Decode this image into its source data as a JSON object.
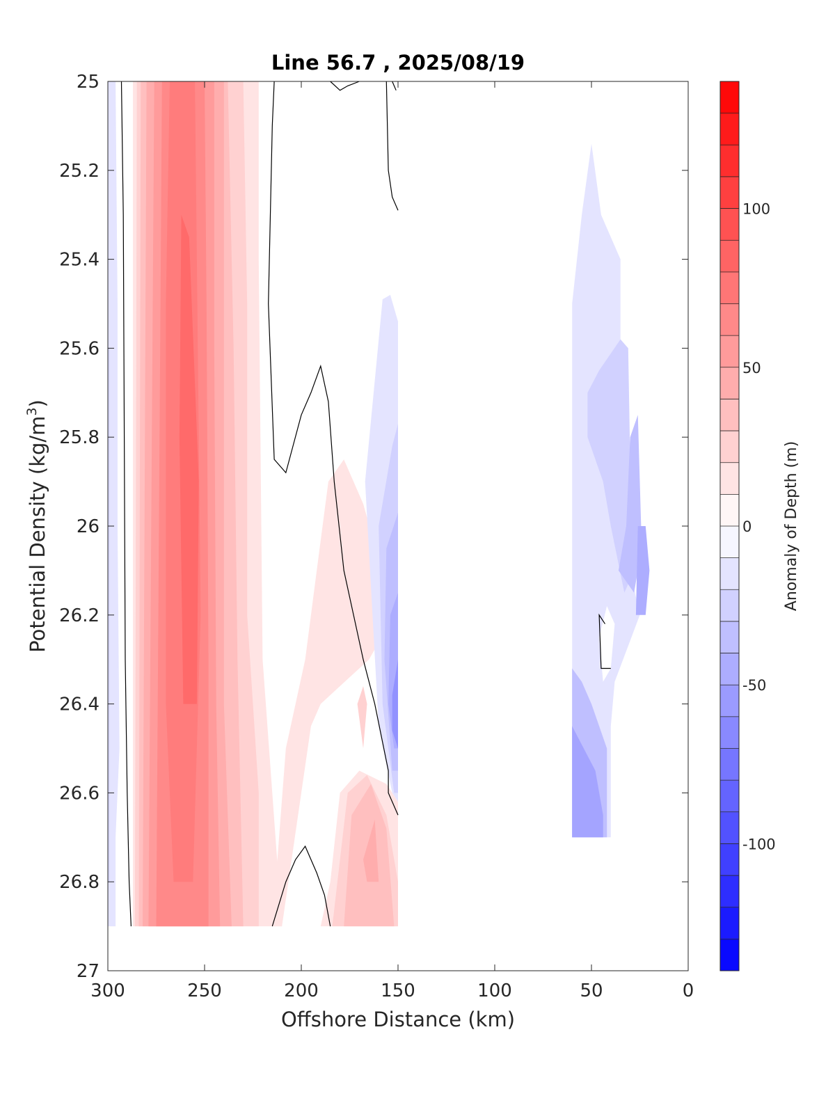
{
  "chart_data": {
    "type": "contourf",
    "title": "Line 56.7 , 2025/08/19",
    "xlabel": "Offshore Distance (km)",
    "ylabel_main": "Potential Density (kg/m",
    "ylabel_sup": "3",
    "ylabel_close": ")",
    "xlim": [
      300,
      0
    ],
    "ylim": [
      25,
      27
    ],
    "x_ticks": [
      300,
      250,
      200,
      150,
      100,
      50,
      0
    ],
    "y_ticks": [
      "25",
      "25.2",
      "25.4",
      "25.6",
      "25.8",
      "26",
      "26.2",
      "26.4",
      "26.6",
      "26.8",
      "27"
    ],
    "y_tick_values": [
      25,
      25.2,
      25.4,
      25.6,
      25.8,
      26,
      26.2,
      26.4,
      26.6,
      26.8,
      27
    ],
    "colorbar": {
      "label": "Anomaly of Depth (m)",
      "range": [
        -140,
        140
      ],
      "step": 10,
      "ticks": [
        100,
        50,
        0,
        -50,
        -100
      ],
      "tick_labels": [
        "100",
        "50",
        "0",
        "-50",
        "-100"
      ],
      "positive_color": "#ff0000",
      "negative_color": "#0000ff"
    },
    "regions": [
      {
        "value": 5,
        "points": [
          [
            296,
            25
          ],
          [
            300,
            25
          ],
          [
            300,
            26.9
          ],
          [
            296,
            26.9
          ]
        ]
      },
      {
        "value": -15,
        "points": [
          [
            298,
            25
          ],
          [
            300,
            25
          ],
          [
            300,
            26.9
          ],
          [
            296,
            26.9
          ],
          [
            296,
            26.7
          ],
          [
            294,
            26.5
          ],
          [
            295,
            26.0
          ],
          [
            295,
            25.5
          ],
          [
            296,
            25.0
          ]
        ]
      },
      {
        "value": -20,
        "points": [
          [
            299,
            25.6
          ],
          [
            300,
            25.6
          ],
          [
            300,
            26.8
          ],
          [
            299,
            26.8
          ]
        ]
      },
      {
        "value": 15,
        "points": [
          [
            287,
            25
          ],
          [
            222,
            25
          ],
          [
            222,
            25.4
          ],
          [
            220,
            26.3
          ],
          [
            215,
            26.6
          ],
          [
            210,
            26.9
          ],
          [
            287,
            26.9
          ]
        ]
      },
      {
        "value": 25,
        "points": [
          [
            285,
            25
          ],
          [
            230,
            25
          ],
          [
            228,
            25.5
          ],
          [
            228,
            26.2
          ],
          [
            222,
            26.6
          ],
          [
            222,
            26.9
          ],
          [
            286,
            26.9
          ]
        ]
      },
      {
        "value": 35,
        "points": [
          [
            283,
            25
          ],
          [
            238,
            25
          ],
          [
            235,
            25.6
          ],
          [
            233,
            26.3
          ],
          [
            230,
            26.9
          ],
          [
            284,
            26.9
          ]
        ]
      },
      {
        "value": 45,
        "points": [
          [
            280,
            25
          ],
          [
            240,
            25
          ],
          [
            240,
            25.7
          ],
          [
            240,
            26.4
          ],
          [
            236,
            26.9
          ],
          [
            282,
            26.9
          ]
        ]
      },
      {
        "value": 55,
        "points": [
          [
            276,
            25
          ],
          [
            245,
            25
          ],
          [
            245,
            25.6
          ],
          [
            244,
            26.4
          ],
          [
            242,
            26.9
          ],
          [
            279,
            26.9
          ]
        ]
      },
      {
        "value": 65,
        "points": [
          [
            272,
            25
          ],
          [
            250,
            25
          ],
          [
            249,
            25.5
          ],
          [
            248,
            26.3
          ],
          [
            248,
            26.9
          ],
          [
            275,
            26.9
          ]
        ]
      },
      {
        "value": 72,
        "points": [
          [
            268,
            25
          ],
          [
            255,
            25
          ],
          [
            254,
            25.4
          ],
          [
            252,
            26.2
          ],
          [
            256,
            26.8
          ],
          [
            266,
            26.8
          ],
          [
            270,
            26.4
          ],
          [
            270,
            25.5
          ]
        ]
      },
      {
        "value": 82,
        "points": [
          [
            262,
            25.3
          ],
          [
            258,
            25.35
          ],
          [
            253,
            25.9
          ],
          [
            254,
            26.4
          ],
          [
            261,
            26.4
          ],
          [
            263,
            25.8
          ]
        ]
      },
      {
        "value": 15,
        "points": [
          [
            210,
            26.9
          ],
          [
            205,
            26.75
          ],
          [
            200,
            26.6
          ],
          [
            195,
            26.45
          ],
          [
            190,
            26.4
          ],
          [
            165,
            26.3
          ],
          [
            152,
            26.2
          ],
          [
            168,
            25.95
          ],
          [
            178,
            25.85
          ],
          [
            186,
            25.9
          ],
          [
            192,
            26.1
          ],
          [
            198,
            26.3
          ],
          [
            208,
            26.5
          ],
          [
            215,
            26.9
          ]
        ]
      },
      {
        "value": 15,
        "points": [
          [
            190,
            26.9
          ],
          [
            185,
            26.8
          ],
          [
            180,
            26.6
          ],
          [
            170,
            26.55
          ],
          [
            156,
            26.58
          ],
          [
            150,
            26.62
          ],
          [
            150,
            26.9
          ]
        ]
      },
      {
        "value": 25,
        "points": [
          [
            184,
            26.9
          ],
          [
            176,
            26.6
          ],
          [
            166,
            26.56
          ],
          [
            156,
            26.65
          ],
          [
            150,
            26.8
          ],
          [
            150,
            26.9
          ]
        ]
      },
      {
        "value": 35,
        "points": [
          [
            178,
            26.9
          ],
          [
            174,
            26.65
          ],
          [
            164,
            26.58
          ],
          [
            156,
            26.68
          ],
          [
            152,
            26.9
          ]
        ]
      },
      {
        "value": 45,
        "points": [
          [
            168,
            26.75
          ],
          [
            162,
            26.66
          ],
          [
            160,
            26.8
          ],
          [
            166,
            26.8
          ]
        ]
      },
      {
        "value": 25,
        "points": [
          [
            171,
            26.4
          ],
          [
            168,
            26.36
          ],
          [
            166,
            26.4
          ],
          [
            168,
            26.5
          ]
        ]
      },
      {
        "value": -15,
        "points": [
          [
            150,
            25.54
          ],
          [
            154,
            25.48
          ],
          [
            158,
            25.49
          ],
          [
            167,
            25.9
          ],
          [
            160,
            26.45
          ],
          [
            153,
            26.6
          ],
          [
            150,
            26.62
          ]
        ]
      },
      {
        "value": -25,
        "points": [
          [
            150,
            25.77
          ],
          [
            153,
            25.82
          ],
          [
            160,
            26.0
          ],
          [
            158,
            26.4
          ],
          [
            152,
            26.6
          ],
          [
            150,
            26.6
          ]
        ]
      },
      {
        "value": -35,
        "points": [
          [
            150,
            25.97
          ],
          [
            156,
            26.05
          ],
          [
            157,
            26.3
          ],
          [
            153,
            26.55
          ],
          [
            150,
            26.55
          ]
        ]
      },
      {
        "value": -45,
        "points": [
          [
            150,
            26.15
          ],
          [
            154,
            26.2
          ],
          [
            155,
            26.4
          ],
          [
            152,
            26.5
          ],
          [
            150,
            26.5
          ]
        ]
      },
      {
        "value": -60,
        "points": [
          [
            150,
            26.3
          ],
          [
            153,
            26.38
          ],
          [
            153,
            26.46
          ],
          [
            150,
            26.5
          ]
        ]
      },
      {
        "value": -15,
        "points": [
          [
            50,
            25.14
          ],
          [
            45,
            25.3
          ],
          [
            35,
            25.4
          ],
          [
            35,
            25.7
          ],
          [
            30,
            26.1
          ],
          [
            25,
            26.2
          ],
          [
            38,
            26.35
          ],
          [
            40,
            26.45
          ],
          [
            40,
            26.7
          ],
          [
            60,
            26.7
          ],
          [
            60,
            25.5
          ],
          [
            55,
            25.3
          ]
        ]
      },
      {
        "value": -25,
        "points": [
          [
            35,
            25.58
          ],
          [
            31,
            25.6
          ],
          [
            30,
            25.85
          ],
          [
            26,
            26.0
          ],
          [
            28,
            26.1
          ],
          [
            33,
            26.15
          ],
          [
            40,
            26.0
          ],
          [
            44,
            25.9
          ],
          [
            52,
            25.8
          ],
          [
            52,
            25.7
          ],
          [
            46,
            25.65
          ]
        ]
      },
      {
        "value": -35,
        "points": [
          [
            26,
            25.75
          ],
          [
            30,
            25.8
          ],
          [
            32,
            26.0
          ],
          [
            36,
            26.1
          ],
          [
            28,
            26.15
          ],
          [
            24,
            26.05
          ]
        ]
      },
      {
        "value": -45,
        "points": [
          [
            26,
            26.0
          ],
          [
            22,
            26.0
          ],
          [
            20,
            26.1
          ],
          [
            22,
            26.2
          ],
          [
            27,
            26.2
          ]
        ]
      },
      {
        "value": -35,
        "points": [
          [
            60,
            26.32
          ],
          [
            55,
            26.35
          ],
          [
            50,
            26.4
          ],
          [
            42,
            26.5
          ],
          [
            42,
            26.7
          ],
          [
            60,
            26.7
          ]
        ]
      },
      {
        "value": -50,
        "points": [
          [
            60,
            26.45
          ],
          [
            54,
            26.5
          ],
          [
            48,
            26.55
          ],
          [
            44,
            26.65
          ],
          [
            44,
            26.7
          ],
          [
            60,
            26.7
          ]
        ]
      },
      {
        "value": 0,
        "points": [
          [
            38,
            26.22
          ],
          [
            42,
            26.18
          ],
          [
            46,
            26.25
          ],
          [
            44,
            26.35
          ],
          [
            40,
            26.32
          ]
        ]
      }
    ],
    "zero_contours": [
      [
        [
          293,
          25
        ],
        [
          292,
          25.3
        ],
        [
          291,
          26.3
        ],
        [
          290,
          26.6
        ],
        [
          289,
          26.8
        ],
        [
          288,
          26.9
        ]
      ],
      [
        [
          214,
          25
        ],
        [
          215,
          25.1
        ],
        [
          217,
          25.5
        ],
        [
          214,
          25.85
        ],
        [
          208,
          25.88
        ],
        [
          200,
          25.75
        ],
        [
          195,
          25.7
        ],
        [
          190,
          25.64
        ],
        [
          186,
          25.72
        ],
        [
          183,
          25.9
        ],
        [
          178,
          26.1
        ],
        [
          168,
          26.3
        ],
        [
          162,
          26.4
        ],
        [
          155,
          26.55
        ],
        [
          155,
          26.6
        ],
        [
          150,
          26.65
        ]
      ],
      [
        [
          185,
          25.0
        ],
        [
          180,
          25.02
        ],
        [
          176,
          25.01
        ],
        [
          170,
          25.0
        ]
      ],
      [
        [
          156,
          25
        ],
        [
          155,
          25.2
        ],
        [
          153,
          25.26
        ],
        [
          150,
          25.29
        ]
      ],
      [
        [
          153,
          25.0
        ],
        [
          151,
          25.02
        ]
      ],
      [
        [
          215,
          26.9
        ],
        [
          208,
          26.8
        ],
        [
          203,
          26.75
        ],
        [
          198,
          26.72
        ],
        [
          192,
          26.78
        ],
        [
          188,
          26.83
        ],
        [
          185,
          26.9
        ]
      ],
      [
        [
          43,
          26.22
        ],
        [
          46,
          26.2
        ],
        [
          45,
          26.32
        ],
        [
          40,
          26.32
        ]
      ]
    ]
  }
}
